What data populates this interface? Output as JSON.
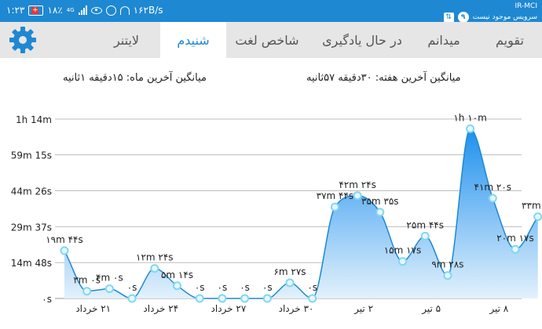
{
  "status_bar": {
    "time": "۱:۲۳",
    "speed": "۱۶۲B/s",
    "battery": "۱۸٪",
    "network_type": "4G",
    "carrier": "IR-MCI",
    "service_text": "سرویس موجود نیست",
    "notification_count": "۹",
    "icons": [
      "battery-icon",
      "signal-icon",
      "eye-icon",
      "alarm-icon",
      "headphones-icon",
      "usb-icon"
    ]
  },
  "tabs": {
    "settings_icon": "gear-icon",
    "items": [
      {
        "label": "تقویم",
        "active": false
      },
      {
        "label": "میدانم",
        "active": false
      },
      {
        "label": "در حال یادگیری",
        "active": false
      },
      {
        "label": "شاخص لغت",
        "active": false
      },
      {
        "label": "شنیدم",
        "active": true
      },
      {
        "label": "لایتنر",
        "active": false
      }
    ]
  },
  "averages": {
    "month": "میانگین آخرین ماه: ۱۵دقیقه  ۱ثانیه",
    "week": "میانگین آخرین هفته: ۳۰دقیقه  ۵۷ثانیه"
  },
  "colors": {
    "accent": "#1e88d2",
    "area_top": "#1e90ee",
    "area_bottom": "#e3f1fc",
    "point_fill": "#e8f8ff",
    "point_stroke": "#7fd7f5",
    "tab_bar": "#e6e6e6"
  },
  "chart_data": {
    "type": "area",
    "y_unit": "seconds",
    "ylim": [
      0,
      4440
    ],
    "y_ticks": [
      {
        "value": 0,
        "label": "۰s"
      },
      {
        "value": 888,
        "label": "14m 48s"
      },
      {
        "value": 1777,
        "label": "29m 37s"
      },
      {
        "value": 2666,
        "label": "44m 26s"
      },
      {
        "value": 3555,
        "label": "59m 15s"
      },
      {
        "value": 4440,
        "label": "1h 14m"
      }
    ],
    "x_tick_labels": [
      {
        "index": 1,
        "label": "۲۱ خرداد"
      },
      {
        "index": 4,
        "label": "۲۴ خرداد"
      },
      {
        "index": 7,
        "label": "۲۷ خرداد"
      },
      {
        "index": 10,
        "label": "۳۰ خرداد"
      },
      {
        "index": 13,
        "label": "۲ تیر"
      },
      {
        "index": 16,
        "label": "۵ تیر"
      },
      {
        "index": 19,
        "label": "۸ تیر"
      }
    ],
    "points": [
      {
        "index": 0,
        "value": 1184,
        "label": "۱۹m ۴۴s"
      },
      {
        "index": 1,
        "value": 180,
        "label": "۳m ۰s"
      },
      {
        "index": 2,
        "value": 240,
        "label": "۴m ۰s"
      },
      {
        "index": 3,
        "value": 0,
        "label": "۰s"
      },
      {
        "index": 4,
        "value": 744,
        "label": "۱۲m ۲۴s"
      },
      {
        "index": 5,
        "value": 314,
        "label": "۵m ۱۴s"
      },
      {
        "index": 6,
        "value": 0,
        "label": "۰s"
      },
      {
        "index": 7,
        "value": 0,
        "label": "۰s"
      },
      {
        "index": 8,
        "value": 0,
        "label": "۰s"
      },
      {
        "index": 9,
        "value": 0,
        "label": "۰s"
      },
      {
        "index": 10,
        "value": 387,
        "label": "۶m ۲۷s"
      },
      {
        "index": 11,
        "value": 0,
        "label": "۰s"
      },
      {
        "index": 12,
        "value": 2264,
        "label": "۳۷m ۴۴s"
      },
      {
        "index": 13,
        "value": 2544,
        "label": "۴۲m ۲۴s"
      },
      {
        "index": 14,
        "value": 2135,
        "label": "۳۵m ۳۵s"
      },
      {
        "index": 15,
        "value": 917,
        "label": "۱۵m ۱۷s"
      },
      {
        "index": 16,
        "value": 1544,
        "label": "۲۵m ۴۴s"
      },
      {
        "index": 17,
        "value": 568,
        "label": "۹m ۲۸s"
      },
      {
        "index": 18,
        "value": 4200,
        "label": "۱h ۱۰m"
      },
      {
        "index": 19,
        "value": 2480,
        "label": "۴۱m ۲۰s"
      },
      {
        "index": 20,
        "value": 1217,
        "label": "۲۰m ۱۷s"
      },
      {
        "index": 21,
        "value": 2022,
        "label": "۳۳m ۴۲"
      }
    ]
  }
}
